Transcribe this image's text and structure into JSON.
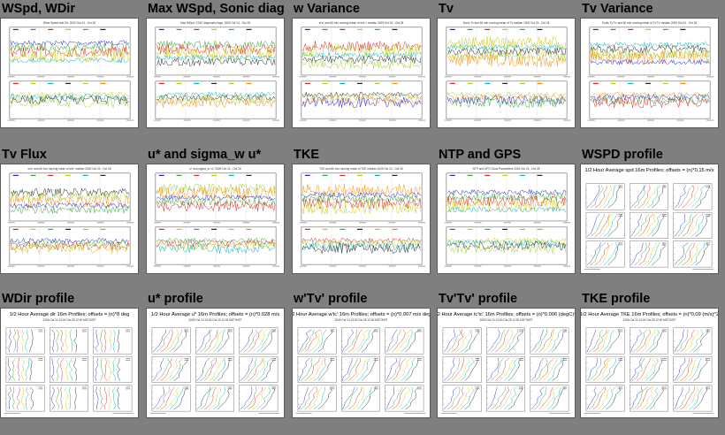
{
  "panels": [
    {
      "title": "WSpd, WDir",
      "kind": "ts2",
      "caption": "Wind Speed and Dir, 2009 Oct 24 - Oct 28"
    },
    {
      "title": "Max WSpd, Sonic diag",
      "kind": "ts2",
      "caption": "Max WSpd, CSAT diagnostic flags, 2009 Oct 24 - Oct 28"
    },
    {
      "title": "w Variance",
      "kind": "ts2",
      "caption": "w'w' and 60 min running mean of w'w' / median 2009 Oct 24 - Oct 28"
    },
    {
      "title": "Tv",
      "kind": "ts2",
      "caption": "Sonic Tv and 60 min running mean of Tv median 2009 Oct 24 - Oct 28"
    },
    {
      "title": "Tv Variance",
      "kind": "ts2",
      "caption": "Sonic Tv'Tv' and 60 min running mean of Tv'Tv' median 2009 Oct 24 - Oct 28"
    },
    {
      "title": "Tv Flux",
      "kind": "ts2",
      "caption": "w'tv' and 60 min running mean of w'tv' median 2009 Oct 24 - Oct 28"
    },
    {
      "title": "u* and sigma_w u*",
      "kind": "ts2",
      "caption": "u* and sigma_w / u* 2009 Oct 24 - Oct 28"
    },
    {
      "title": "TKE",
      "kind": "ts2",
      "caption": "TKE and 60 min running mean of TKE median 2009 Oct 24 - Oct 28"
    },
    {
      "title": "NTP and GPS",
      "kind": "ts2",
      "caption": "NTP and GPS Clock Parameters 2009 Oct 24 - Oct 28"
    },
    {
      "title": "WSPD profile",
      "kind": "prof",
      "header": "1/2 Hour Average spd 16m Profiles; offsets = (n)*0.15 m/s",
      "sub": ""
    },
    {
      "title": "WDir profile",
      "kind": "prof",
      "header": "1/2 Hour Average dir 16m Profiles; offsets = (n)*8 deg",
      "sub": "2009 Oct 24 13:00 Oct 28 12:00 MDT/MST"
    },
    {
      "title": "u* profile",
      "kind": "prof",
      "header": "1/2 Hour Average u* 16m Profiles; offsets = (n)*0.028 m/s",
      "sub": "2009 Oct 24 13:00 Oct 28 12:00 MDT/MST"
    },
    {
      "title": "w'Tv' profile",
      "kind": "prof",
      "header": "1/2 Hour Average w'tc' 16m Profiles; offsets = (n)*0.007 m/s degC",
      "sub": "2009 Oct 24 13:00 Oct 28 12:00 MDT/MST"
    },
    {
      "title": "Tv'Tv' profile",
      "kind": "prof",
      "header": "1/2 Hour Average tc'tc' 16m Profiles; offsets = (n)*0.006 (degC)^2",
      "sub": "2009 Oct 24 13:00 Oct 28 12:00 MDT/MST"
    },
    {
      "title": "TKE profile",
      "kind": "prof",
      "header": "1/2 Hour Average TKE 16m Profiles; offsets = (n)*0.09 (m/s)^2",
      "sub": "2009 Oct 24 13:00 Oct 28 12:00 MDT/MST"
    }
  ]
}
